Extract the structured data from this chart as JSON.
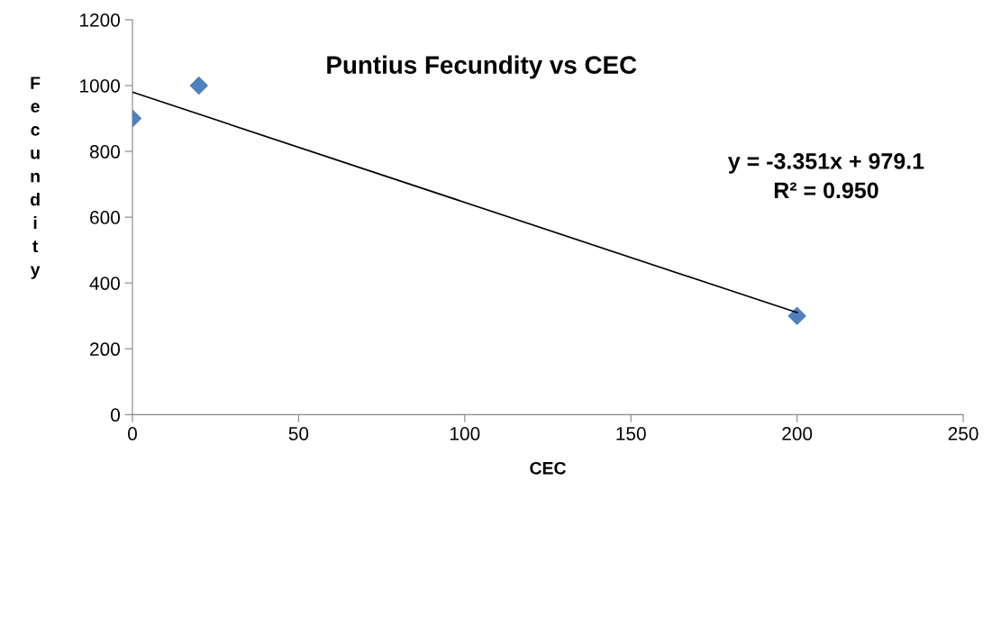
{
  "chart_data": {
    "type": "scatter",
    "title": "Puntius Fecundity vs CEC",
    "xlabel": "CEC",
    "ylabel": "Fecundity",
    "annotations": [
      "y = -3.351x + 979.1\nR² = 0.950"
    ],
    "series": [
      {
        "color": "#4f81bd",
        "marker": "diamond",
        "x": [
          0,
          20,
          200
        ],
        "values": [
          900,
          1000,
          300
        ]
      },
      {
        "type": "line",
        "color": "#000000",
        "marker": "none",
        "line_style": "solid",
        "x": [
          0,
          200
        ],
        "values": [
          980,
          310
        ]
      }
    ],
    "xlim": [
      0,
      250
    ],
    "xticks": [
      0,
      50,
      100,
      150,
      200,
      250
    ],
    "ylim": [
      0,
      1200
    ],
    "yticks": [
      0,
      200,
      400,
      600,
      800,
      1000,
      1200
    ],
    "grid": false,
    "legend": false
  }
}
